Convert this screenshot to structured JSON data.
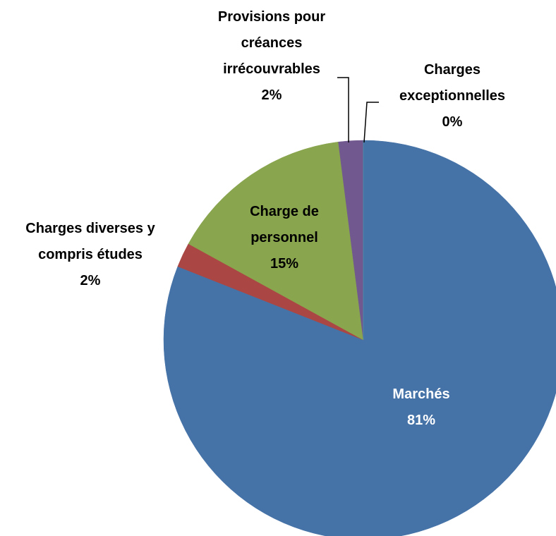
{
  "chart_data": {
    "type": "pie",
    "categories": [
      "Marchés",
      "Charges diverses y compris études",
      "Charge de personnel",
      "Provisions pour créances irrécouvrables",
      "Charges exceptionnelles"
    ],
    "values": [
      81,
      2,
      15,
      2,
      0
    ],
    "value_labels": [
      "81%",
      "2%",
      "15%",
      "2%",
      "0%"
    ],
    "colors": [
      "#4572a7",
      "#aa4643",
      "#89a54e",
      "#71588f",
      "#4198af"
    ]
  }
}
